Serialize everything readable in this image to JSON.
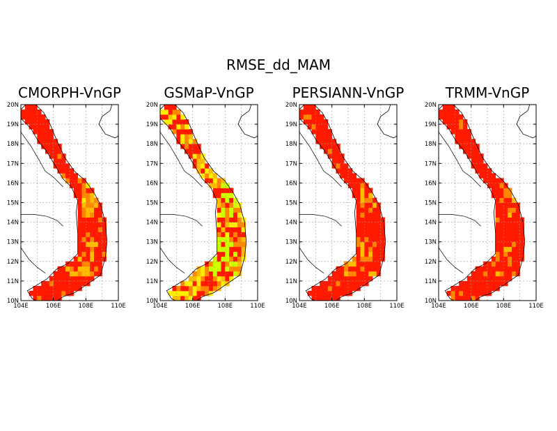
{
  "title": "RMSE_dd_MAM",
  "panels": [
    {
      "title": "CMORPH-VnGP",
      "variant": 0
    },
    {
      "title": "GSMaP-VnGP",
      "variant": 1
    },
    {
      "title": "PERSIANN-VnGP",
      "variant": 2
    },
    {
      "title": "TRMM-VnGP",
      "variant": 3
    }
  ],
  "axes": {
    "x_ticks": [
      "104E",
      "106E",
      "108E",
      "110E"
    ],
    "y_ticks": [
      "10N",
      "11N",
      "12N",
      "13N",
      "14N",
      "15N",
      "16N",
      "17N",
      "18N",
      "19N",
      "20N"
    ],
    "lon_range": [
      104,
      110
    ],
    "lat_range": [
      10,
      20
    ],
    "grid": true
  },
  "colors": {
    "red": "#ff1a00",
    "orange": "#ff8800",
    "yellow_orange": "#ffbb00",
    "yellow": "#ffee00",
    "yellow_green": "#ccff00",
    "coastline": "#000000",
    "gridline": "#999999"
  }
}
